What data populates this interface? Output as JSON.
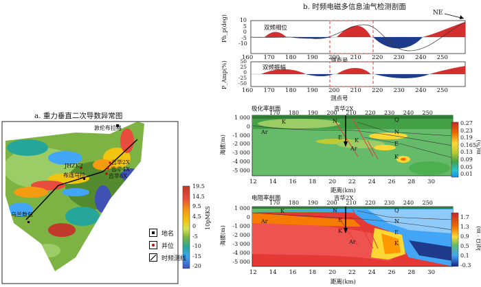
{
  "left_panel": {
    "title": "a. 重力垂直二次导数异常图",
    "places": {
      "dunlunlage": "敦伦布拉格",
      "jhzk2": "JHZK2",
      "buliangejie": "布连乌拉",
      "jihua2x": "吉华2X",
      "jihua4x": "吉华4X",
      "jihua8x": "吉华8X",
      "wulanbaolu": "乌兰敖包"
    },
    "colorbar": {
      "unit": "10pMKS",
      "ticks": [
        "19.5",
        "14.5",
        "9.5",
        "4.5",
        "0",
        "-5",
        "-10",
        "-15",
        "-20"
      ],
      "colors": [
        "#c0392b",
        "#e74c3c",
        "#f39c12",
        "#f1c40f",
        "#d4e157",
        "#7cb342",
        "#26a69a",
        "#42a5f5",
        "#3f51b5"
      ]
    },
    "legend": [
      {
        "label": "地名",
        "kind": "place"
      },
      {
        "label": "井位",
        "kind": "well"
      },
      {
        "label": "时频测线",
        "kind": "line"
      }
    ]
  },
  "right_panel": {
    "title": "b. 时频电磁多信息油气检测剖面",
    "direction": "NE",
    "phase": {
      "ylabel": "Ph_p(deg)",
      "legend": "双频相位",
      "yticks": [
        "10",
        "5",
        "0",
        "-5",
        "-10"
      ],
      "xticks": [
        "160",
        "170",
        "180",
        "190",
        "200",
        "210",
        "220",
        "230",
        "240",
        "250"
      ],
      "xlabel": "测点号"
    },
    "amp": {
      "ylabel": "P_Amp(%)",
      "legend": "双频振幅",
      "yticks": [
        "50",
        "25",
        "0",
        "-25",
        "-50"
      ],
      "xticks": [
        "160",
        "170",
        "180",
        "190",
        "200",
        "210",
        "220",
        "230",
        "240",
        "250"
      ],
      "xlabel": "测点号"
    },
    "polar": {
      "label": "极化率剖面",
      "well": "吉华2X",
      "ylabel": "海拔(m)",
      "xlabel": "距离(km)",
      "top_ticks": [
        "170",
        "180",
        "190",
        "200",
        "210",
        "220",
        "230",
        "240",
        "250"
      ],
      "yticks": [
        "1 000",
        "0",
        "-1 000",
        "-2 000",
        "-3 000",
        "-4 000",
        "-5 000"
      ],
      "xticks": [
        "12",
        "14",
        "16",
        "18",
        "20",
        "22",
        "24",
        "26",
        "28",
        "30"
      ],
      "layers": [
        "K",
        "Ar",
        "N",
        "E",
        "K",
        "Ar",
        "Q",
        "N",
        "E",
        "K"
      ],
      "colorbar": {
        "unit": "m(%)",
        "ticks": [
          "0.27",
          "0.23",
          "0.19",
          "0.165",
          "0.13",
          "0.09",
          "0.05",
          "0.01"
        ]
      }
    },
    "resist": {
      "label": "电阻率剖面",
      "well": "吉华2X",
      "ylabel": "海拔(m)",
      "xlabel": "距离(km)",
      "top_ticks": [
        "170",
        "180",
        "190",
        "200",
        "210",
        "220",
        "230",
        "240",
        "250"
      ],
      "yticks": [
        "1 000",
        "0",
        "-1 000",
        "-2 000",
        "-3 000",
        "-4 000",
        "-5 000"
      ],
      "xticks": [
        "12",
        "14",
        "16",
        "18",
        "20",
        "22",
        "24",
        "26",
        "28",
        "30"
      ],
      "layers": [
        "K",
        "Ar",
        "N",
        "E",
        "K",
        "Ar",
        "Q",
        "N",
        "E",
        "K"
      ],
      "colorbar": {
        "unit": "lg(Ω · m)",
        "ticks": [
          "1.7",
          "1.3",
          "0.9",
          "0.5",
          "0.1",
          "-0.3"
        ]
      }
    }
  }
}
